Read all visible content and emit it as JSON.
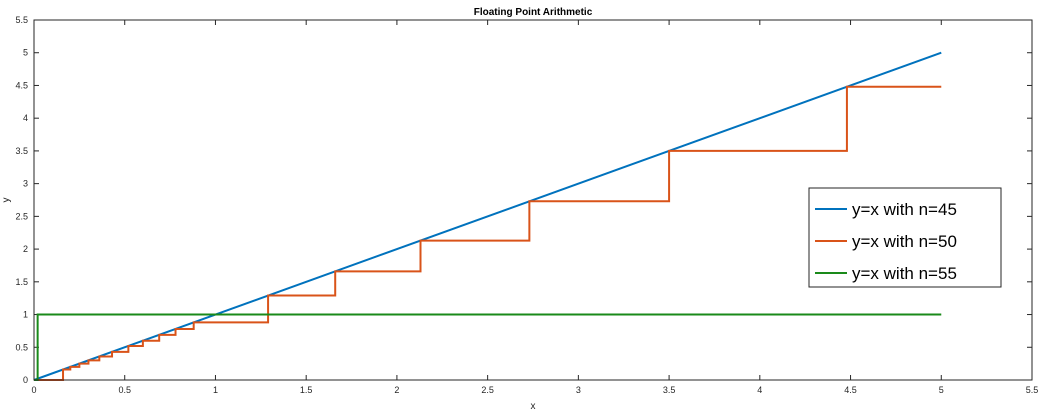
{
  "chart_data": {
    "type": "line",
    "title": "Floating Point Arithmetic",
    "xlabel": "x",
    "ylabel": "y",
    "xlim": [
      0,
      5.5
    ],
    "ylim": [
      0,
      5.5
    ],
    "xticks": [
      "0",
      "0.5",
      "1",
      "1.5",
      "2",
      "2.5",
      "3",
      "3.5",
      "4",
      "4.5",
      "5",
      "5.5"
    ],
    "yticks": [
      "0",
      "0.5",
      "1",
      "1.5",
      "2",
      "2.5",
      "3",
      "3.5",
      "4",
      "4.5",
      "5",
      "5.5"
    ],
    "grid": false,
    "legend_position": "right",
    "series": [
      {
        "name": "y=x with n=45",
        "color": "#0072BD",
        "x": [
          0,
          5
        ],
        "y": [
          0,
          5
        ]
      },
      {
        "name": "y=x with n=50",
        "color": "#D95319",
        "step_breaks": [
          0.16,
          0.2,
          0.25,
          0.3,
          0.36,
          0.43,
          0.52,
          0.6,
          0.69,
          0.78,
          0.88,
          1.29,
          1.66,
          2.13,
          2.73,
          3.5,
          4.48
        ],
        "x_end": 5
      },
      {
        "name": "y=x with n=55",
        "color": "#1A8A1A",
        "x": [
          0,
          0.02,
          0.02,
          5
        ],
        "y": [
          0,
          0,
          1,
          1
        ]
      }
    ]
  }
}
